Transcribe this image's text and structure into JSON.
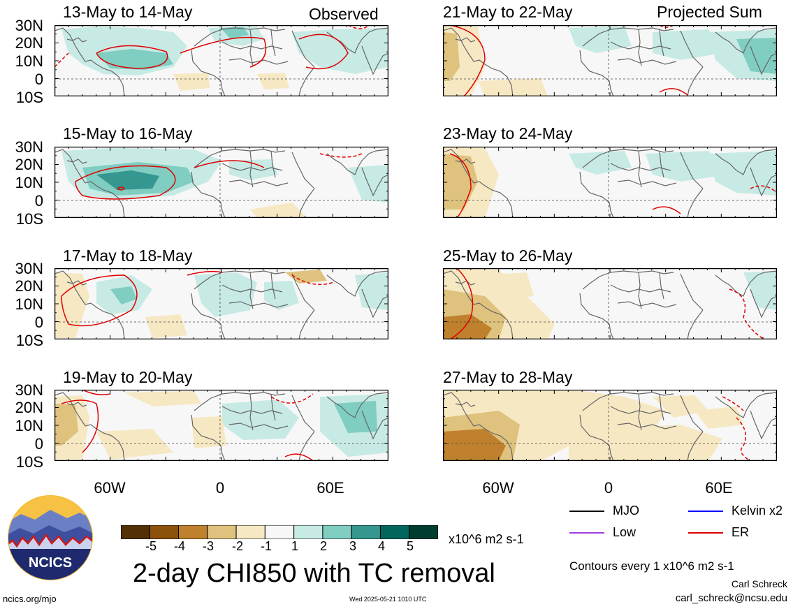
{
  "column_labels": {
    "left": "Observed",
    "right": "Projected Sum"
  },
  "panels": [
    {
      "id": "p1",
      "title": "13-May to 14-May",
      "column": "left"
    },
    {
      "id": "p2",
      "title": "15-May to 16-May",
      "column": "left"
    },
    {
      "id": "p3",
      "title": "17-May to 18-May",
      "column": "left"
    },
    {
      "id": "p4",
      "title": "19-May to 20-May",
      "column": "left"
    },
    {
      "id": "p5",
      "title": "21-May to 22-May",
      "column": "right"
    },
    {
      "id": "p6",
      "title": "23-May to 24-May",
      "column": "right"
    },
    {
      "id": "p7",
      "title": "25-May to 26-May",
      "column": "right"
    },
    {
      "id": "p8",
      "title": "27-May to 28-May",
      "column": "right"
    }
  ],
  "lat_labels": [
    "30N",
    "20N",
    "10N",
    "0",
    "10S"
  ],
  "lon_labels": [
    "60W",
    "0",
    "60E"
  ],
  "colorbar": {
    "ticks": [
      "-5",
      "-4",
      "-3",
      "-2",
      "-1",
      "1",
      "2",
      "3",
      "4",
      "5"
    ],
    "colors": [
      "#543005",
      "#8c510a",
      "#bf812d",
      "#dfc27d",
      "#f6e8c3",
      "#f7f7f7",
      "#c7eae5",
      "#80cdc1",
      "#35978f",
      "#01665e",
      "#003c30"
    ],
    "units": "x10^6 m2 s-1"
  },
  "title": "2-day CHI850 with TC removal",
  "legend": [
    {
      "label": "MJO",
      "color": "#000000"
    },
    {
      "label": "Kelvin x2",
      "color": "#0000ff"
    },
    {
      "label": "Low",
      "color": "#a040e0"
    },
    {
      "label": "ER",
      "color": "#e00000"
    }
  ],
  "contour_note": "Contours every 1 x10^6 m2 s-1",
  "author": "Carl Schreck",
  "email": "carl_schreck@ncsu.edu",
  "site": "ncics.org/mjo",
  "timestamp": "Wed 2025-05-21 1010 UTC",
  "logo_text": "NCICS"
}
